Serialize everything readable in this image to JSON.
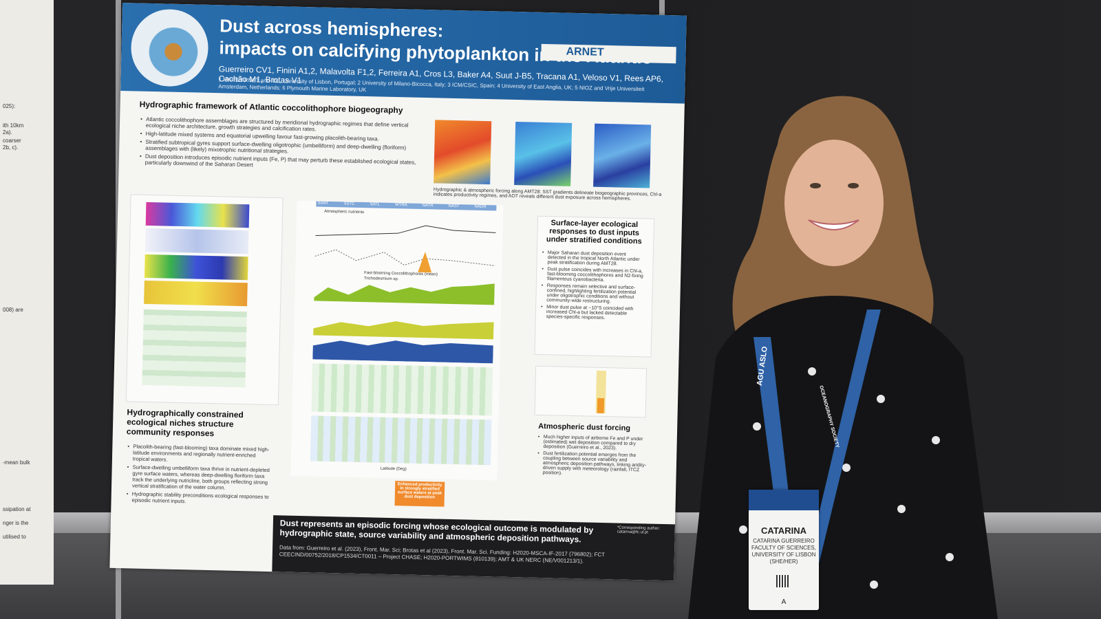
{
  "poster": {
    "title_line1": "Dust across hemispheres:",
    "title_line2": "impacts on calcifying phytoplankton in the Atlantic",
    "authors": "Guerreiro CV1, Finini A1,2, Malavolta F1,2, Ferreira A1, Cros L3, Baker A4, Suut J-B5, Tracana A1, Veloso V1, Rees AP6, Cachão M1, Brotas V1",
    "affiliations": "1 MARE/ARNET and IDL, University of Lisbon, Portugal; 2 University of Milano-Bicocca, Italy; 3 ICM/CSIC, Spain; 4 University of East Anglia, UK; 5 NIOZ and Vrije Universiteit Amsterdam, Netherlands; 6 Plymouth Marine Laboratory, UK",
    "logo_text": "ARNET",
    "section1": {
      "title": "Hydrographic framework of Atlantic coccolithophore biogeography",
      "bullets": [
        "Atlantic coccolithophore assemblages are structured by meridional hydrographic regimes that define vertical ecological niche architecture, growth strategies and calcification rates.",
        "High-latitude mixed systems and equatorial upwelling favour fast-growing placolith-bearing taxa.",
        "Stratified subtropical gyres support surface-dwelling oligotrophic (umbelliform) and deep-dwelling (floriform) assemblages with (likely) mixotrophic nutritional strategies.",
        "Dust deposition introduces episodic nutrient inputs (Fe, P) that may perturb these established ecological states, particularly downwind of the Saharan Desert"
      ]
    },
    "maps_caption": "Hydrographic & atmospheric forcing along AMT28: SST gradients delineate biogeographic provinces, Chl-a indicates productivity regimes, and AOT reveals different dust exposure across hemispheres.",
    "section2": {
      "title": "Surface-layer ecological responses to dust inputs under stratified conditions",
      "bullets": [
        "Major Saharan dust deposition event detected in the tropical North Atlantic under peak stratification during AMT28.",
        "Dust pulse coincides with increases in Chl-a, fast-blooming coccolithophores and N2-fixing filamentous cyanobacteria.",
        "Responses remain selective and surface-confined, highlighting fertilization potential under oligotrophic conditions and without community-wide restructuring.",
        "Minor dust pulse at ~10°S coincided with increased Chl-a but lacked detectable species-specific responses."
      ]
    },
    "section3": {
      "title": "Hydrographically constrained ecological niches structure community responses",
      "bullets": [
        "Placolith-bearing (fast-blooming) taxa dominate mixed high-latitude environments and regionally nutrient-enriched tropical waters.",
        "Surface-dwelling umbelliform taxa thrive in nutrient-depleted gyre surface waters, whereas deep-dwelling floriform taxa track the underlying nutricline, both groups reflecting strong vertical stratification of the water column.",
        "Hydrographic stability preconditions ecological responses to episodic nutrient inputs."
      ]
    },
    "section4": {
      "title": "Atmospheric dust forcing",
      "bullets": [
        "Much higher inputs of airborne Fe and P under (estimated) wet deposition compared to dry deposition (Guerreiro et al., 2023).",
        "Dust fertilization potential emerges from the coupling between source variability and atmospheric deposition pathways, linking aridity-driven supply with meteorology (rainfall, ITCZ position)."
      ]
    },
    "center_labels": {
      "provinces": [
        "SANT",
        "SSTC",
        "SATL",
        "WTRA",
        "NATR",
        "NAST",
        "NADR"
      ],
      "nutrients_label": "Atmospheric nutrients",
      "coccos_label": "Fast-blooming Coccolithophores (mean)",
      "tricho_label": "Trichodesmium sp.",
      "xaxis": "Latitude (Deg)",
      "highlight": "Enhanced productivity in strongly stratified surface waters at peak dust deposition"
    },
    "footer": {
      "statement": "Dust represents an episodic forcing whose ecological outcome is modulated by hydrographic state, source variability and atmospheric deposition pathways.",
      "data_from": "Data from: Guerreiro et al. (2023), Front. Mar. Sci; Brotas et al (2023), Front. Mar. Sci. Funding: H2020-MSCA-IF-2017 (796802); FCT CEECIND/00752/2018/CP1534/CT0011 – Project CHASE; H2020-PORTWIMS (810139); AMT & UK NERC (NE/V001213/1).",
      "contact": "*Corresponding author: catarina@fc.ul.pt"
    }
  },
  "left_poster": {
    "lines": [
      "025):",
      "ith 10km",
      "2a).",
      "coarser",
      "2b, c).",
      "008) are",
      "-mean bulk",
      "ssipation at",
      "nger is the",
      "utilised to"
    ]
  },
  "badge": {
    "name": "CATARINA",
    "info": "CATARINA GUERREIRO FACULTY OF SCIENCES, UNIVERSITY OF LISBON (SHE/HER)",
    "letter": "A"
  },
  "lanyard": {
    "left_text": "AGU ASLO",
    "right_text": "OCEANOGRAPHY SOCIETY"
  },
  "colors": {
    "poster_header": "#1d5b97",
    "sweater": "#141416",
    "lanyard": "#2f62a6",
    "hair": "#8a6440"
  }
}
